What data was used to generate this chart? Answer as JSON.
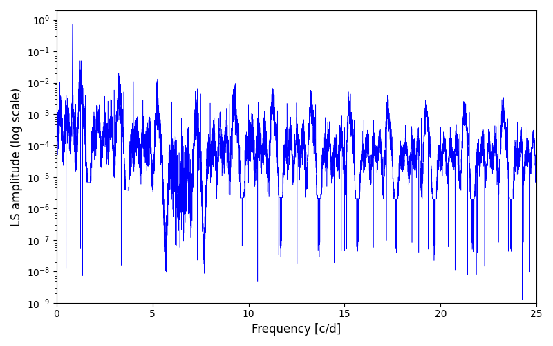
{
  "xlabel": "Frequency [c/d]",
  "ylabel": "LS amplitude (log scale)",
  "line_color": "blue",
  "xlim": [
    0,
    25
  ],
  "ylim": [
    1e-09,
    2.0
  ],
  "xmin": 0.0,
  "xmax": 25.0,
  "background_color": "#ffffff",
  "seed": 1234,
  "n_points": 8000,
  "figsize": [
    8.0,
    5.0
  ],
  "dpi": 100,
  "linewidth": 0.4
}
